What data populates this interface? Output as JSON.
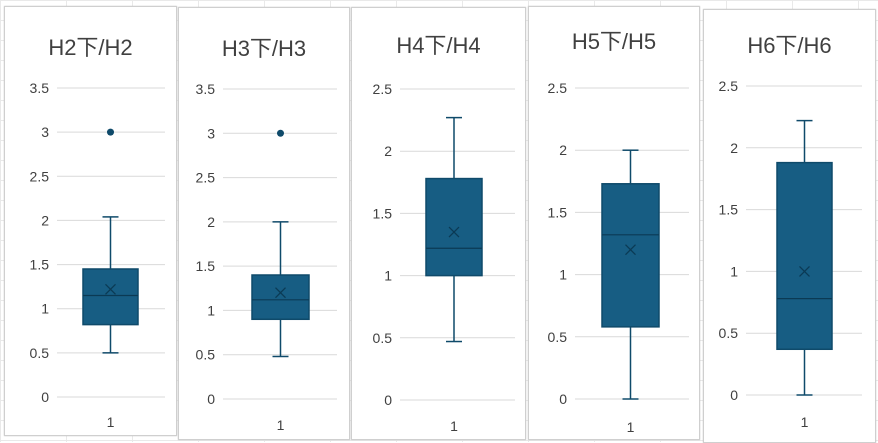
{
  "colors": {
    "box_fill": "#175d83",
    "box_stroke": "#0f4a6a",
    "grid": "#d9d9d9",
    "text": "#404040"
  },
  "chart_data": [
    {
      "type": "box",
      "title": "H2下/H2",
      "categories": [
        "1"
      ],
      "yticks": [
        "0",
        "0.5",
        "1",
        "1.5",
        "2",
        "2.5",
        "3",
        "3.5"
      ],
      "ylim": [
        0,
        3.5
      ],
      "min": 0.5,
      "q1": 0.82,
      "median": 1.15,
      "q3": 1.45,
      "max": 2.04,
      "mean": 1.22,
      "outliers": [
        3.0
      ]
    },
    {
      "type": "box",
      "title": "H3下/H3",
      "categories": [
        "1"
      ],
      "yticks": [
        "0",
        "0.5",
        "1",
        "1.5",
        "2",
        "2.5",
        "3",
        "3.5"
      ],
      "ylim": [
        0,
        3.5
      ],
      "min": 0.48,
      "q1": 0.9,
      "median": 1.12,
      "q3": 1.4,
      "max": 2.0,
      "mean": 1.2,
      "outliers": [
        3.0
      ]
    },
    {
      "type": "box",
      "title": "H4下/H4",
      "categories": [
        "1"
      ],
      "yticks": [
        "0",
        "0.5",
        "1",
        "1.5",
        "2",
        "2.5"
      ],
      "ylim": [
        0,
        2.5
      ],
      "min": 0.47,
      "q1": 1.0,
      "median": 1.22,
      "q3": 1.78,
      "max": 2.27,
      "mean": 1.35,
      "outliers": []
    },
    {
      "type": "box",
      "title": "H5下/H5",
      "categories": [
        "1"
      ],
      "yticks": [
        "0",
        "0.5",
        "1",
        "1.5",
        "2",
        "2.5"
      ],
      "ylim": [
        0,
        2.5
      ],
      "min": 0.0,
      "q1": 0.58,
      "median": 1.32,
      "q3": 1.73,
      "max": 2.0,
      "mean": 1.2,
      "outliers": []
    },
    {
      "type": "box",
      "title": "H6下/H6",
      "categories": [
        "1"
      ],
      "yticks": [
        "0",
        "0.5",
        "1",
        "1.5",
        "2",
        "2.5"
      ],
      "ylim": [
        0,
        2.5
      ],
      "min": 0.0,
      "q1": 0.37,
      "median": 0.78,
      "q3": 1.88,
      "max": 2.22,
      "mean": 1.0,
      "outliers": []
    }
  ]
}
